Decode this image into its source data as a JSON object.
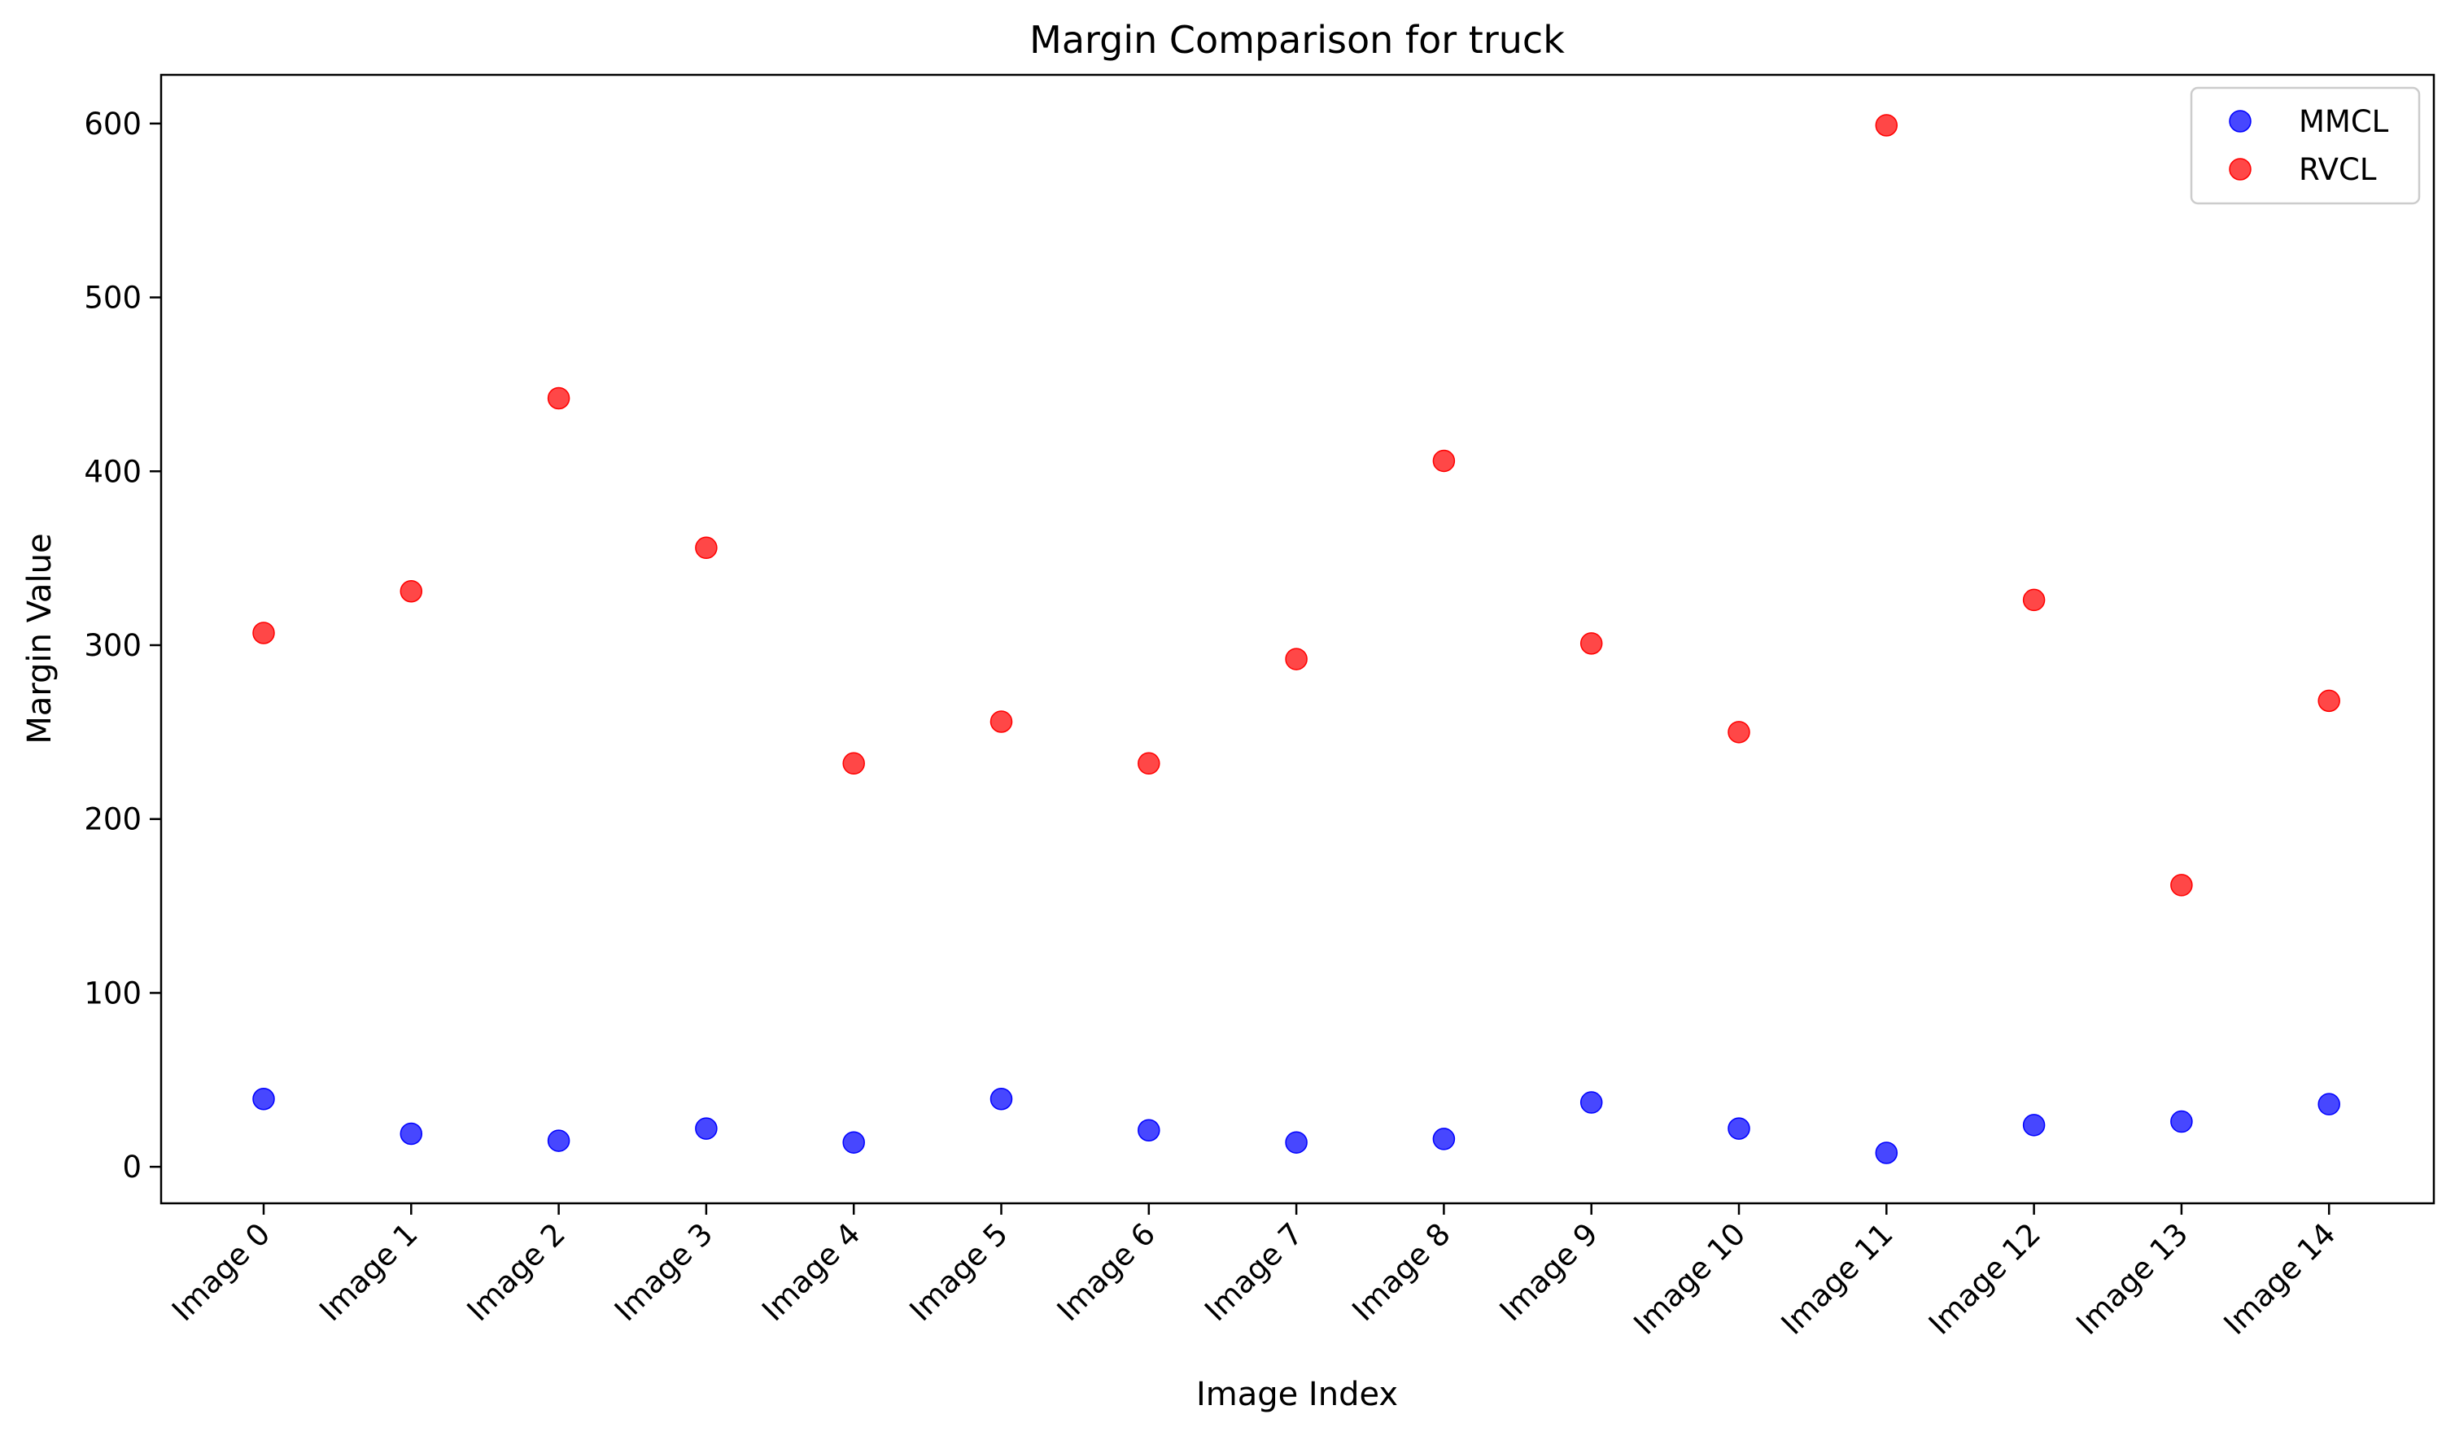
{
  "chart_data": {
    "type": "scatter",
    "title": "Margin Comparison for truck",
    "xlabel": "Image Index",
    "ylabel": "Margin Value",
    "categories": [
      "Image 0",
      "Image 1",
      "Image 2",
      "Image 3",
      "Image 4",
      "Image 5",
      "Image 6",
      "Image 7",
      "Image 8",
      "Image 9",
      "Image 10",
      "Image 11",
      "Image 12",
      "Image 13",
      "Image 14"
    ],
    "ylim": [
      -21,
      628
    ],
    "yticks": [
      0,
      100,
      200,
      300,
      400,
      500,
      600
    ],
    "grid": false,
    "legend_position": "top-right",
    "series": [
      {
        "name": "MMCL",
        "color": "#0000ff",
        "values": [
          39,
          19,
          15,
          22,
          14,
          39,
          21,
          14,
          16,
          37,
          22,
          8,
          24,
          26,
          36
        ]
      },
      {
        "name": "RVCL",
        "color": "#ff0000",
        "values": [
          307,
          331,
          442,
          356,
          232,
          256,
          232,
          292,
          406,
          301,
          250,
          599,
          326,
          162,
          268
        ]
      }
    ]
  }
}
